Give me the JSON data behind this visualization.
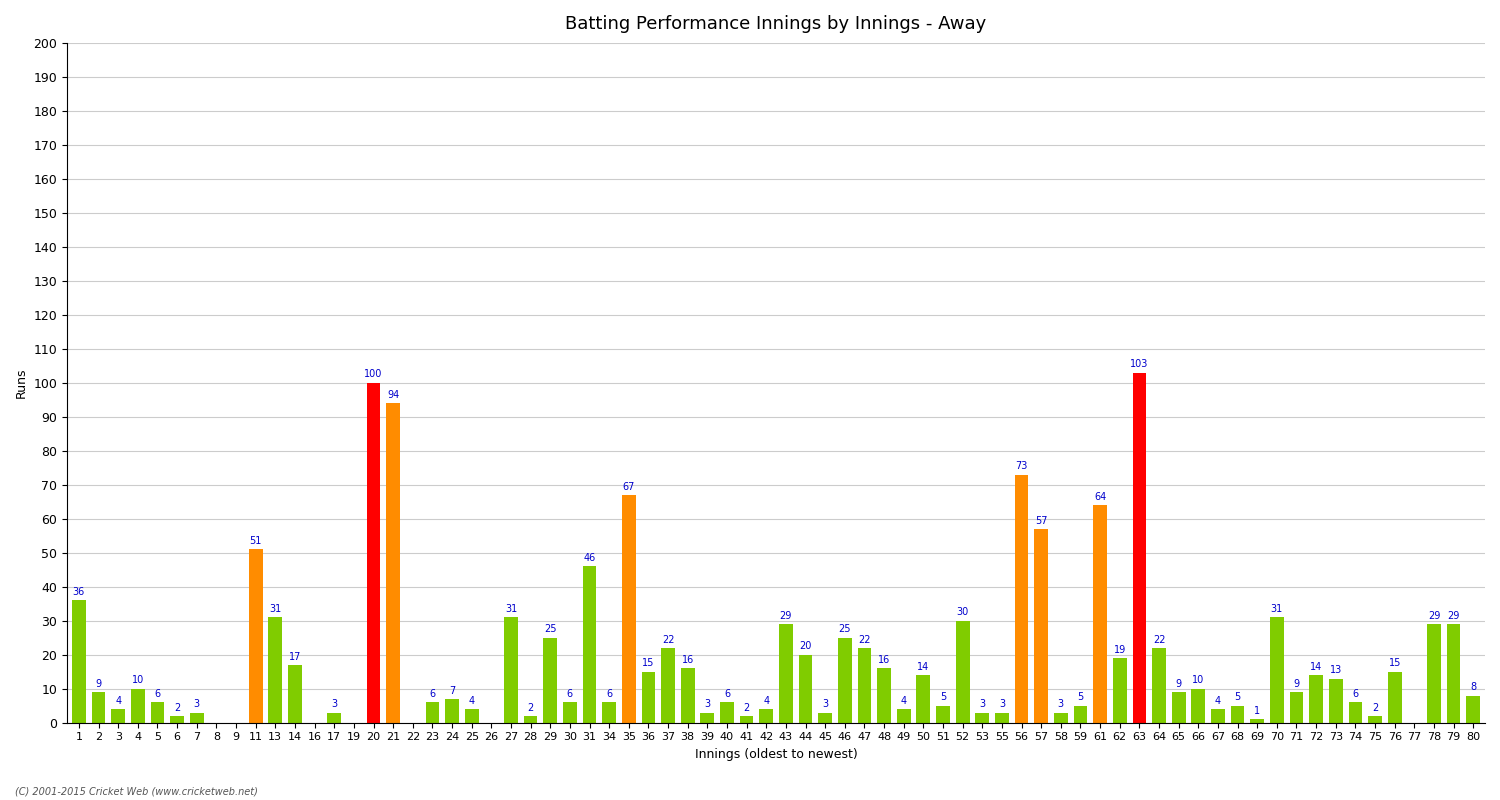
{
  "title": "Batting Performance Innings by Innings - Away",
  "xlabel": "Innings (oldest to newest)",
  "ylabel": "Runs",
  "ylim": [
    0,
    200
  ],
  "yticks": [
    0,
    10,
    20,
    30,
    40,
    50,
    60,
    70,
    80,
    90,
    100,
    110,
    120,
    130,
    140,
    150,
    160,
    170,
    180,
    190,
    200
  ],
  "footnote": "(C) 2001-2015 Cricket Web (www.cricketweb.net)",
  "innings": [
    1,
    2,
    3,
    4,
    5,
    6,
    7,
    8,
    9,
    11,
    13,
    14,
    16,
    17,
    19,
    20,
    21,
    22,
    23,
    24,
    25,
    26,
    27,
    28,
    29,
    30,
    31,
    34,
    35,
    36,
    37,
    38,
    39,
    40,
    41,
    42,
    43,
    44,
    45,
    46,
    47,
    48,
    49,
    50,
    51,
    52,
    53,
    55,
    56,
    57,
    58,
    59,
    61,
    62,
    63,
    64,
    65,
    66,
    67,
    68,
    69,
    70,
    71,
    72,
    73,
    74,
    75,
    76,
    77,
    78,
    79,
    80
  ],
  "values": [
    36,
    9,
    4,
    10,
    6,
    2,
    3,
    0,
    0,
    51,
    31,
    17,
    0,
    3,
    0,
    100,
    94,
    0,
    6,
    7,
    4,
    0,
    31,
    2,
    25,
    6,
    46,
    6,
    67,
    15,
    22,
    16,
    3,
    6,
    2,
    4,
    29,
    20,
    3,
    25,
    22,
    16,
    4,
    14,
    5,
    30,
    3,
    3,
    73,
    57,
    3,
    5,
    64,
    19,
    103,
    22,
    9,
    10,
    4,
    5,
    1,
    31,
    9,
    14,
    13,
    6,
    2,
    15,
    0,
    29,
    29,
    8
  ],
  "colors": [
    "#80cc00",
    "#80cc00",
    "#80cc00",
    "#80cc00",
    "#80cc00",
    "#80cc00",
    "#80cc00",
    "#80cc00",
    "#80cc00",
    "#ff8c00",
    "#80cc00",
    "#80cc00",
    "#80cc00",
    "#80cc00",
    "#80cc00",
    "#ff0000",
    "#ff8c00",
    "#80cc00",
    "#80cc00",
    "#80cc00",
    "#80cc00",
    "#80cc00",
    "#80cc00",
    "#80cc00",
    "#80cc00",
    "#80cc00",
    "#80cc00",
    "#80cc00",
    "#ff8c00",
    "#80cc00",
    "#80cc00",
    "#80cc00",
    "#80cc00",
    "#80cc00",
    "#80cc00",
    "#80cc00",
    "#80cc00",
    "#80cc00",
    "#80cc00",
    "#80cc00",
    "#80cc00",
    "#80cc00",
    "#80cc00",
    "#80cc00",
    "#80cc00",
    "#80cc00",
    "#80cc00",
    "#80cc00",
    "#ff8c00",
    "#ff8c00",
    "#80cc00",
    "#80cc00",
    "#ff8c00",
    "#80cc00",
    "#ff0000",
    "#80cc00",
    "#80cc00",
    "#80cc00",
    "#80cc00",
    "#80cc00",
    "#80cc00",
    "#80cc00",
    "#80cc00",
    "#80cc00",
    "#80cc00",
    "#80cc00",
    "#80cc00",
    "#80cc00",
    "#80cc00",
    "#80cc00",
    "#80cc00",
    "#80cc00"
  ],
  "label_color": "#0000cc",
  "background_color": "#ffffff",
  "grid_color": "#cccccc",
  "title_fontsize": 13,
  "axis_fontsize": 9,
  "label_fontsize": 7,
  "bar_width": 0.7
}
